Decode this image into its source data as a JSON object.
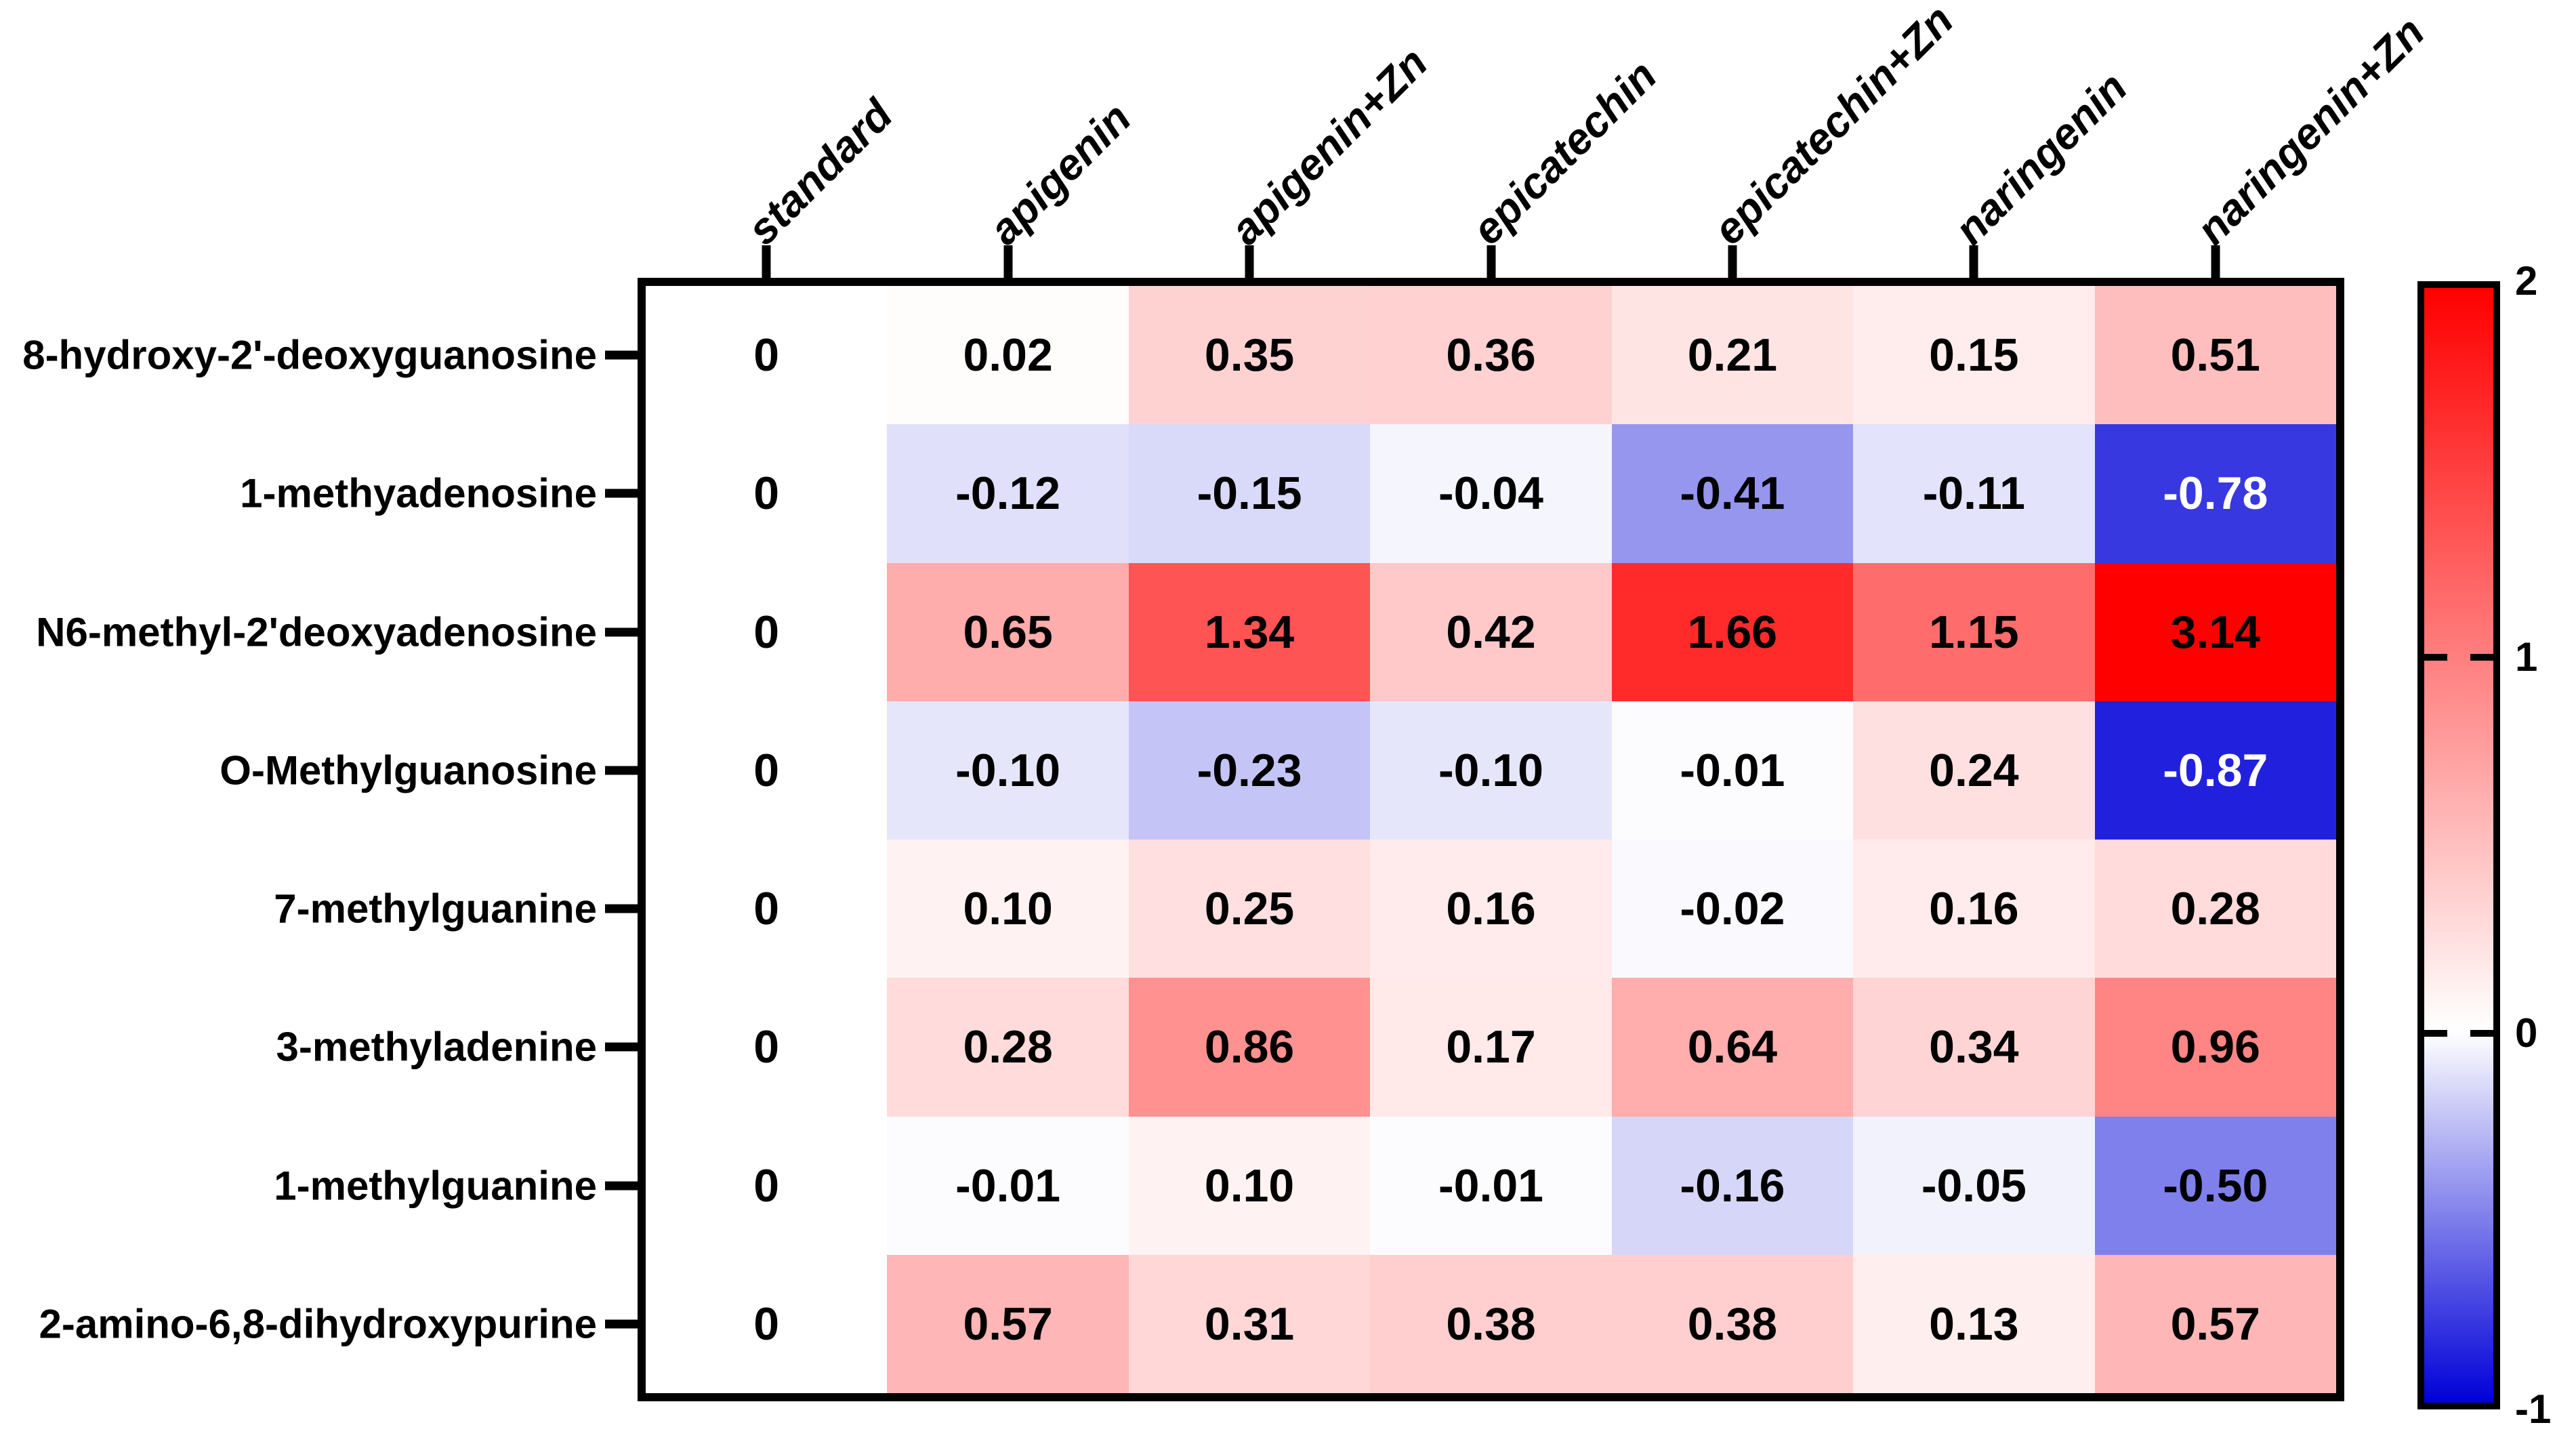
{
  "figure": {
    "background": "#ffffff",
    "frame_color": "#000000"
  },
  "chart_data": {
    "type": "heatmap",
    "title": "",
    "columns": [
      "standard",
      "apigenin",
      "apigenin+Zn",
      "epicatechin",
      "epicatechin+Zn",
      "naringenin",
      "naringenin+Zn"
    ],
    "rows": [
      "8-hydroxy-2'-deoxyguanosine",
      "1-methyadenosine",
      "N6-methyl-2'deoxyadenosine",
      "O-Methylguanosine",
      "7-methylguanine",
      "3-methyladenine",
      "1-methylguanine",
      "2-amino-6,8-dihydroxypurine"
    ],
    "values": [
      [
        "0",
        "0.02",
        "0.35",
        "0.36",
        "0.21",
        "0.15",
        "0.51"
      ],
      [
        "0",
        "-0.12",
        "-0.15",
        "-0.04",
        "-0.41",
        "-0.11",
        "-0.78"
      ],
      [
        "0",
        "0.65",
        "1.34",
        "0.42",
        "1.66",
        "1.15",
        "3.14"
      ],
      [
        "0",
        "-0.10",
        "-0.23",
        "-0.10",
        "-0.01",
        "0.24",
        "-0.87"
      ],
      [
        "0",
        "0.10",
        "0.25",
        "0.16",
        "-0.02",
        "0.16",
        "0.28"
      ],
      [
        "0",
        "0.28",
        "0.86",
        "0.17",
        "0.64",
        "0.34",
        "0.96"
      ],
      [
        "0",
        "-0.01",
        "0.10",
        "-0.01",
        "-0.16",
        "-0.05",
        "-0.50"
      ],
      [
        "0",
        "0.57",
        "0.31",
        "0.38",
        "0.38",
        "0.13",
        "0.57"
      ]
    ],
    "grid": false,
    "colorbar": {
      "position": "right",
      "vmax": 2,
      "vmin": -1,
      "tick_values": [
        2,
        1,
        0,
        -1
      ],
      "tick_labels": [
        "2",
        "1",
        "0",
        "-1"
      ],
      "notch_values": [
        1,
        0
      ],
      "color_positive": "#ff0000",
      "color_zero": "#ffffff",
      "color_negative": "#0000d8",
      "white_text_below": -0.6
    }
  }
}
